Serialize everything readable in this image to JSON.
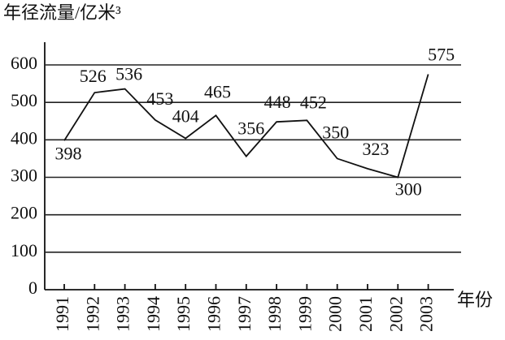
{
  "chart_data": {
    "type": "line",
    "y_axis_label": "年径流量/亿米³",
    "x_axis_label": "年份",
    "categories": [
      "1991",
      "1992",
      "1993",
      "1994",
      "1995",
      "1996",
      "1997",
      "1998",
      "1999",
      "2000",
      "2001",
      "2002",
      "2003"
    ],
    "values": [
      398,
      526,
      536,
      453,
      404,
      465,
      356,
      448,
      452,
      350,
      323,
      300,
      575
    ],
    "color": "#111111",
    "ylim": [
      0,
      600
    ],
    "yticks": [
      0,
      100,
      200,
      300,
      400,
      500,
      600
    ],
    "grid": true
  }
}
